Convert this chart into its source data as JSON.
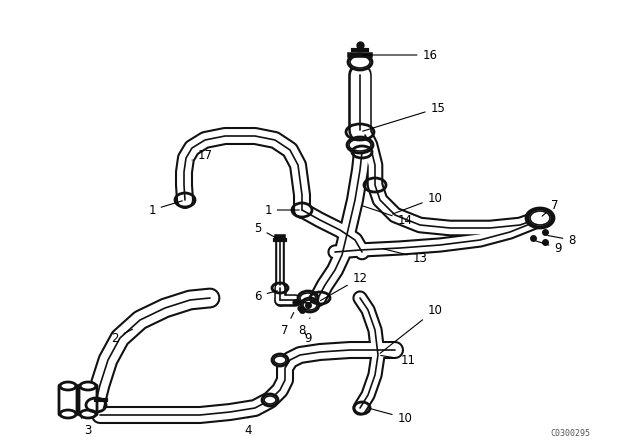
{
  "bg_color": "#ffffff",
  "line_color": "#111111",
  "diagram_code": "C0300295",
  "pipe_lw": 8,
  "hose_lw": 11
}
